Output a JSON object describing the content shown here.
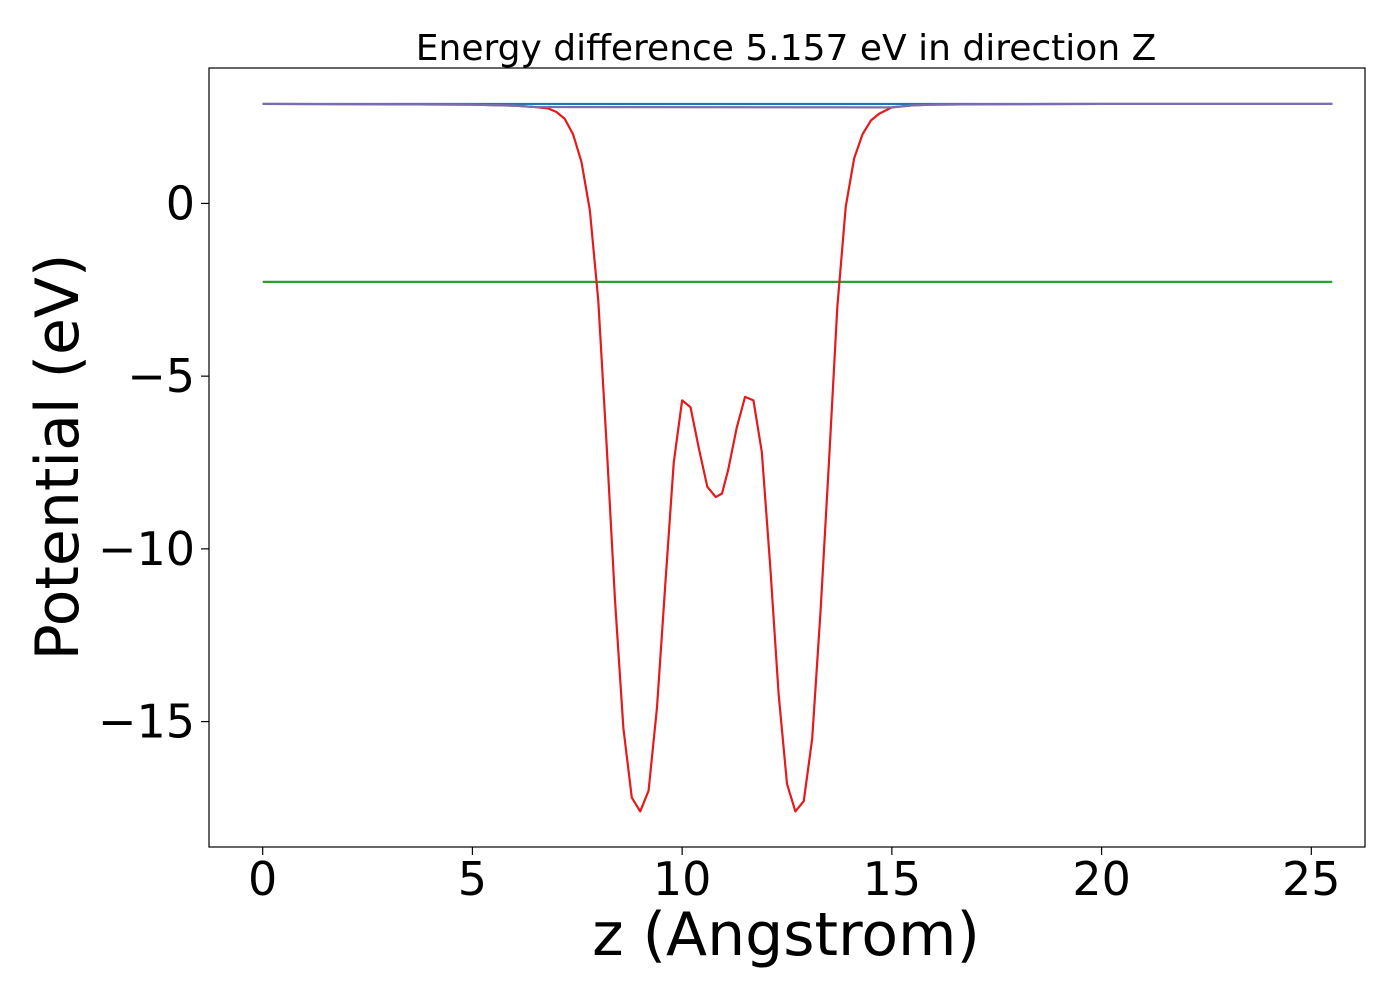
{
  "chart_data": {
    "type": "line",
    "title": "Energy difference 5.157 eV in direction Z",
    "xlabel": "z (Angstrom)",
    "ylabel": "Potential (eV)",
    "xlim": [
      -1.28,
      26.28
    ],
    "ylim": [
      -18.63,
      3.92
    ],
    "x_ticks": [
      0,
      5,
      10,
      15,
      20,
      25
    ],
    "y_ticks": [
      0,
      -5,
      -10,
      -15
    ],
    "x_tick_labels": [
      "0",
      "5",
      "10",
      "15",
      "20",
      "25"
    ],
    "y_tick_labels": [
      "0",
      "−5",
      "−10",
      "−15"
    ],
    "grid": false,
    "series": [
      {
        "color": "#1f77b4",
        "x": [
          0,
          25.5
        ],
        "y": [
          2.88,
          2.88
        ]
      },
      {
        "color": "#2ca02c",
        "x": [
          0,
          25.5
        ],
        "y": [
          -2.27,
          -2.27
        ]
      },
      {
        "color": "#e41a1c",
        "x": [
          0,
          3,
          5,
          6,
          6.5,
          6.8,
          7.0,
          7.2,
          7.4,
          7.6,
          7.8,
          8.0,
          8.2,
          8.4,
          8.6,
          8.8,
          9.0,
          9.2,
          9.4,
          9.6,
          9.8,
          10.0,
          10.2,
          10.4,
          10.6,
          10.8,
          10.95,
          11.1,
          11.3,
          11.5,
          11.7,
          11.9,
          12.1,
          12.3,
          12.5,
          12.7,
          12.9,
          13.1,
          13.3,
          13.5,
          13.7,
          13.9,
          14.1,
          14.3,
          14.5,
          14.7,
          15.0,
          15.5,
          16.0,
          17.0,
          20.0,
          25.5
        ],
        "y": [
          2.88,
          2.87,
          2.86,
          2.83,
          2.79,
          2.75,
          2.65,
          2.45,
          2.0,
          1.2,
          -0.2,
          -2.8,
          -7.0,
          -11.5,
          -15.2,
          -17.2,
          -17.6,
          -17.0,
          -14.6,
          -11.0,
          -7.5,
          -5.7,
          -5.9,
          -7.1,
          -8.2,
          -8.5,
          -8.4,
          -7.7,
          -6.5,
          -5.6,
          -5.7,
          -7.2,
          -10.5,
          -14.2,
          -16.8,
          -17.6,
          -17.3,
          -15.5,
          -11.8,
          -7.5,
          -3.0,
          -0.1,
          1.3,
          2.0,
          2.4,
          2.6,
          2.78,
          2.84,
          2.86,
          2.87,
          2.88,
          2.88
        ]
      },
      {
        "color": "#7570b3",
        "x": [
          0,
          3,
          5,
          6,
          6.5,
          15.0,
          15.5,
          16.0,
          17.0,
          20.0,
          25.5
        ],
        "y": [
          2.88,
          2.87,
          2.86,
          2.83,
          2.79,
          2.78,
          2.84,
          2.86,
          2.87,
          2.88,
          2.88
        ]
      }
    ]
  }
}
